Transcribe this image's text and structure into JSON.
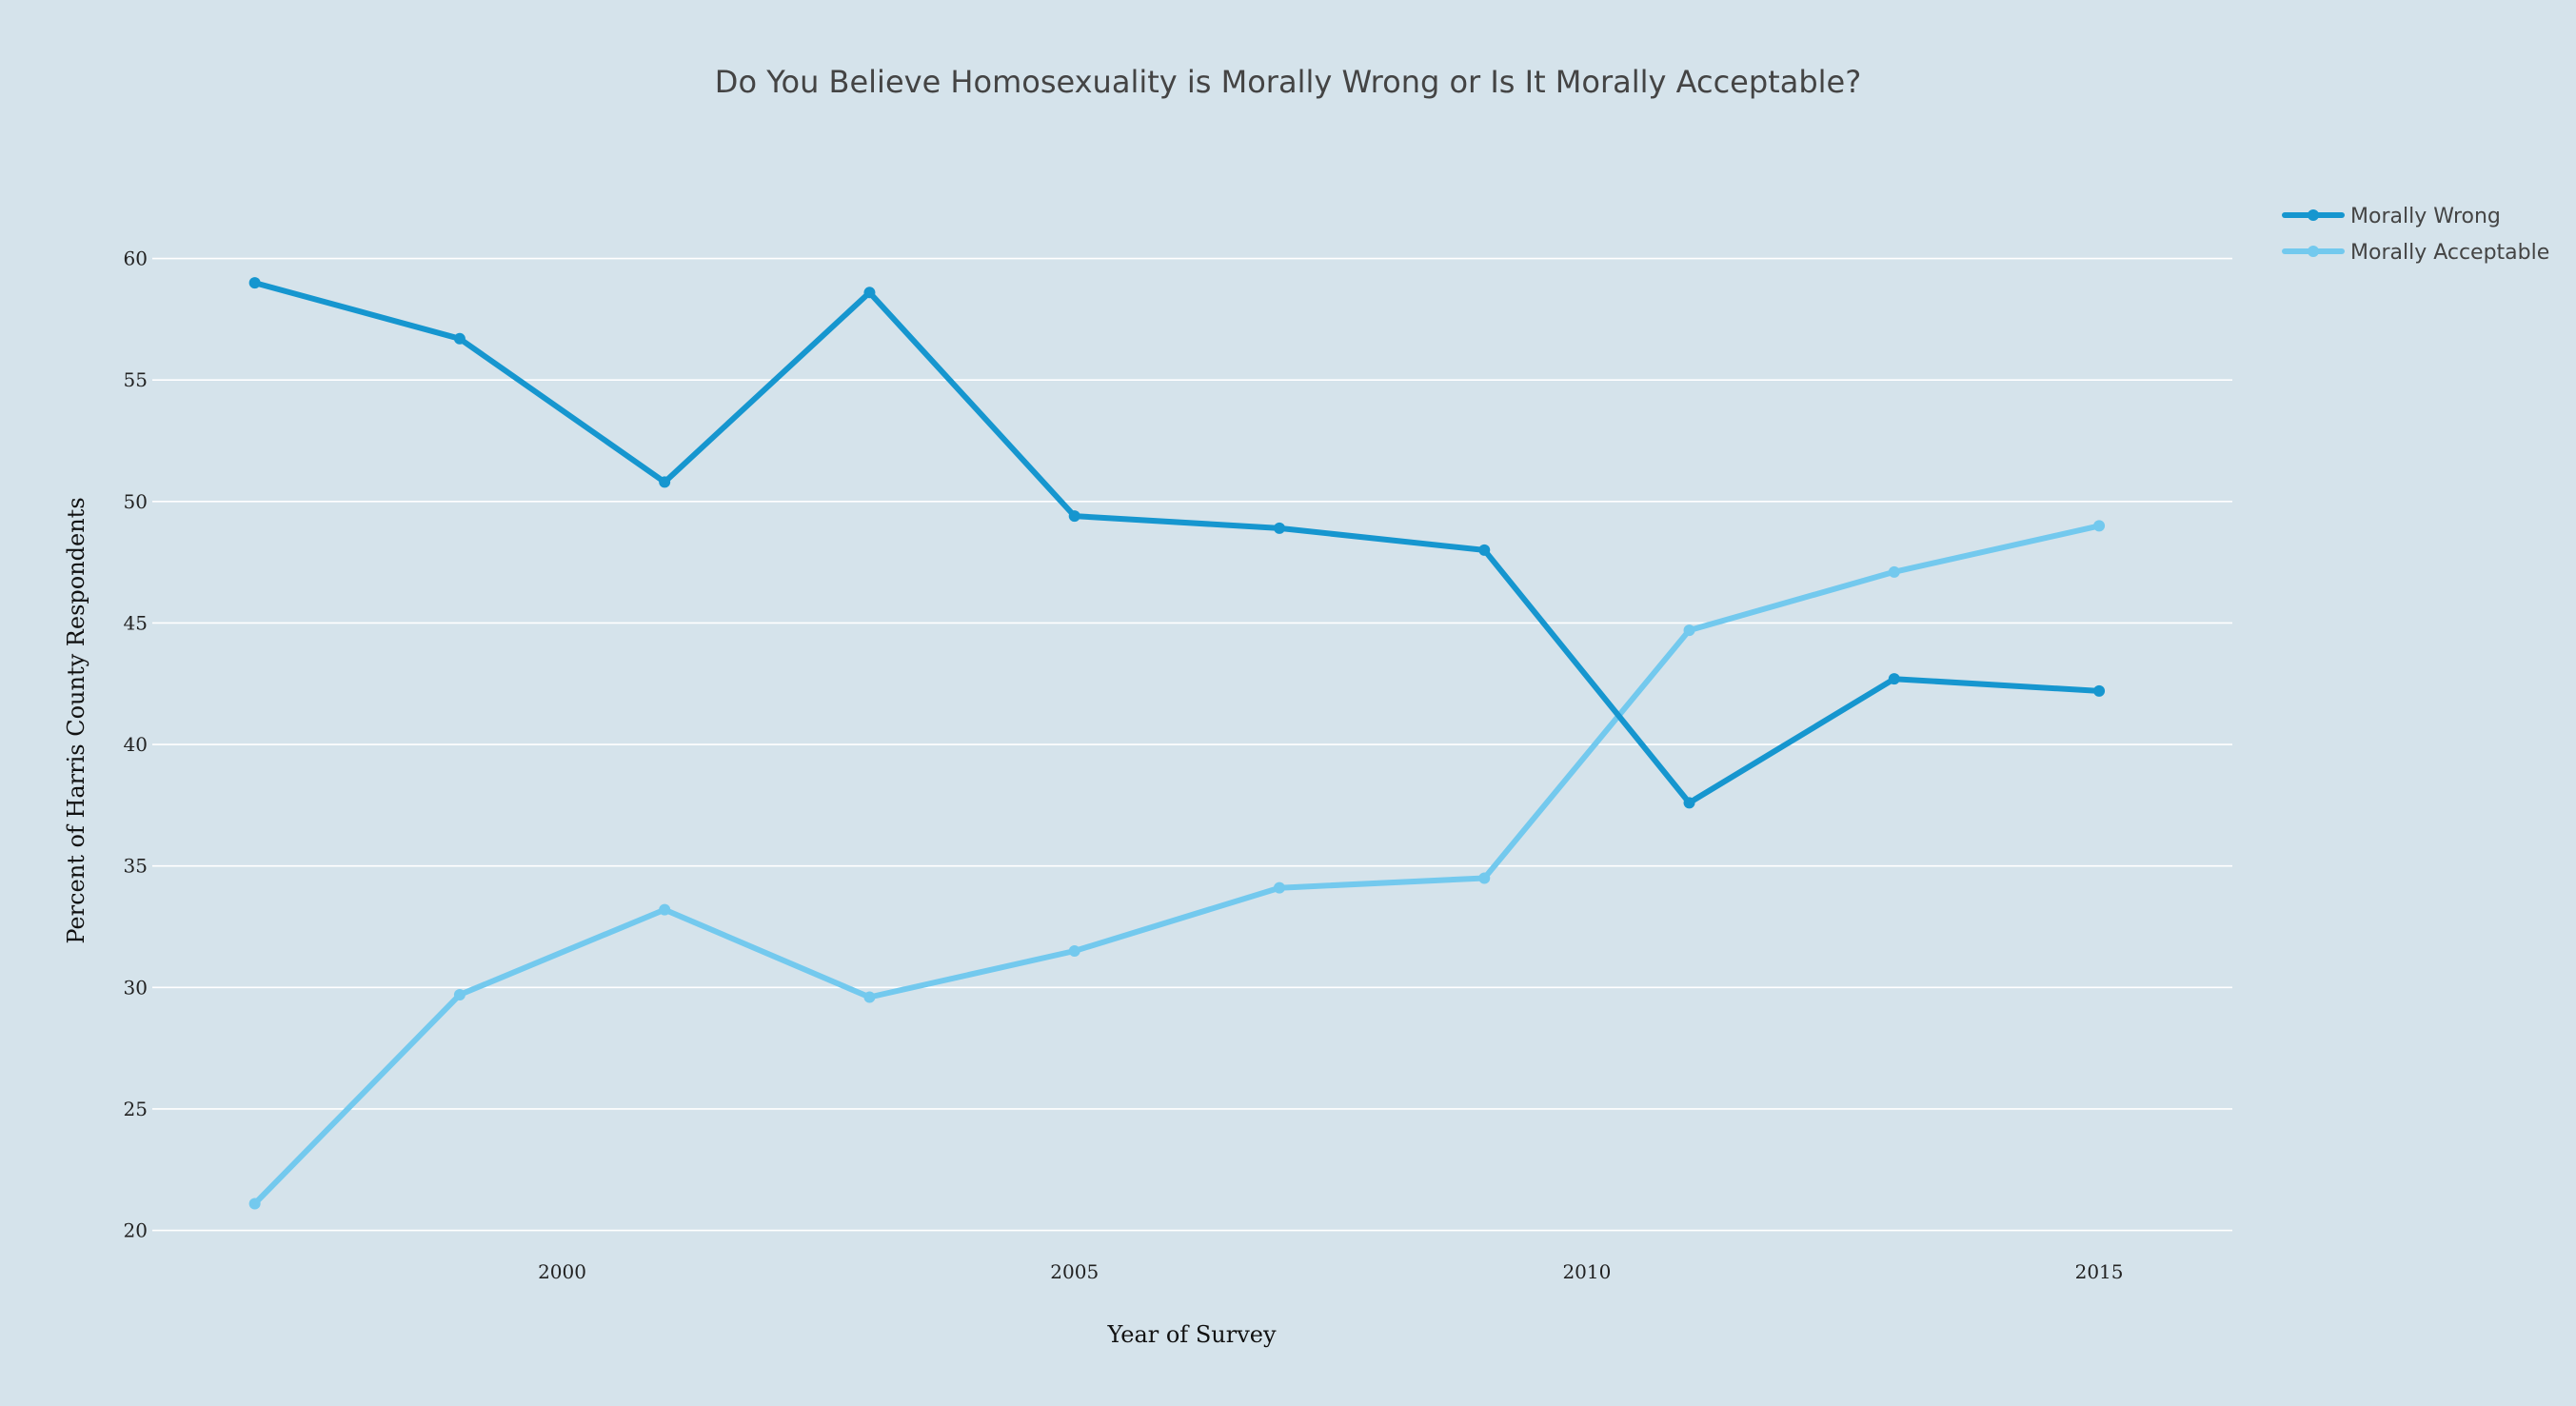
{
  "chart_data": {
    "type": "line",
    "title": "Do You Believe Homosexuality is Morally Wrong or Is It Morally Acceptable?",
    "xlabel": "Year of Survey",
    "ylabel": "Percent of Harris County Respondents",
    "xlim": [
      1996,
      2016.3
    ],
    "ylim": [
      19.2,
      63
    ],
    "x_ticks": [
      2000,
      2005,
      2010,
      2015
    ],
    "y_ticks": [
      20,
      25,
      30,
      35,
      40,
      45,
      50,
      55,
      60
    ],
    "grid": "horizontal",
    "legend_position": "top-right",
    "x": [
      1997,
      1999,
      2001,
      2003,
      2005,
      2007,
      2009,
      2011,
      2013,
      2015
    ],
    "series": [
      {
        "name": "Morally Wrong",
        "color": "#1696cf",
        "values": [
          59.0,
          56.7,
          50.8,
          58.6,
          49.4,
          48.9,
          48.0,
          37.6,
          42.7,
          42.2
        ]
      },
      {
        "name": "Morally Acceptable",
        "color": "#73c9ee",
        "values": [
          21.1,
          29.7,
          33.2,
          29.6,
          31.5,
          34.1,
          34.5,
          44.7,
          47.1,
          49.0
        ]
      }
    ]
  }
}
